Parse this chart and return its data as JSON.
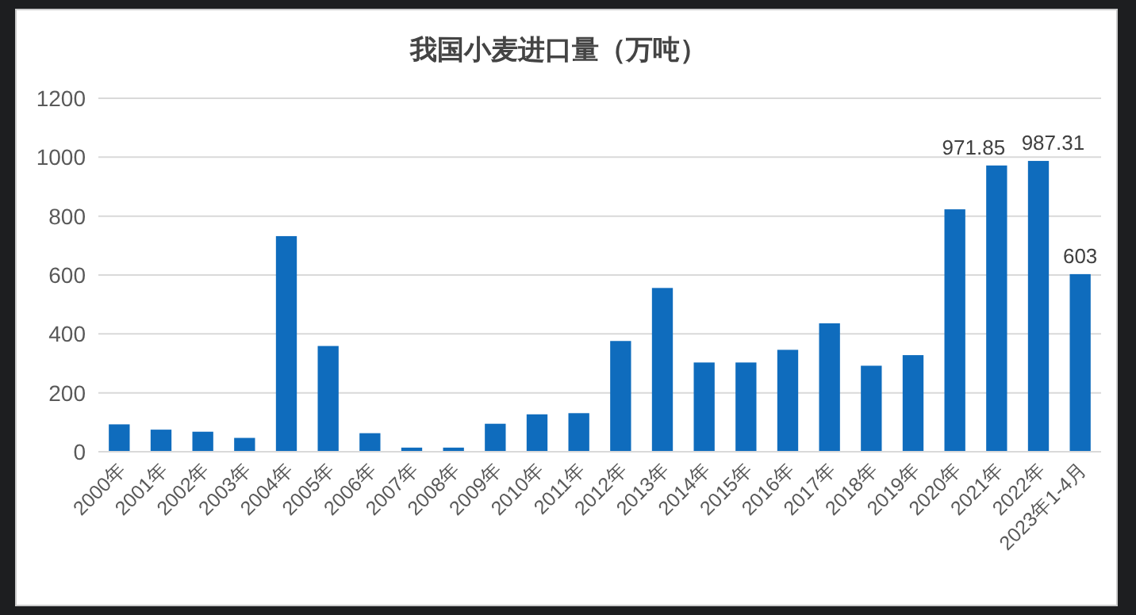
{
  "chart_data": {
    "type": "bar",
    "title": "我国小麦进口量（万吨）",
    "categories": [
      "2000年",
      "2001年",
      "2002年",
      "2003年",
      "2004年",
      "2005年",
      "2006年",
      "2007年",
      "2008年",
      "2009年",
      "2010年",
      "2011年",
      "2012年",
      "2013年",
      "2014年",
      "2015年",
      "2016年",
      "2017年",
      "2018年",
      "2019年",
      "2020年",
      "2021年",
      "2022年",
      "2023年1-4月"
    ],
    "values": [
      93,
      75,
      68,
      47,
      732,
      359,
      63,
      14,
      14,
      95,
      127,
      131,
      376,
      556,
      303,
      303,
      346,
      436,
      292,
      328,
      823,
      971.85,
      987.31,
      603
    ],
    "value_labels": [
      null,
      null,
      null,
      null,
      null,
      null,
      null,
      null,
      null,
      null,
      null,
      null,
      null,
      null,
      null,
      null,
      null,
      null,
      null,
      null,
      null,
      "971.85",
      "987.31",
      "603"
    ],
    "color": "#0f6cbd",
    "ylim": [
      0,
      1200
    ],
    "yticks": [
      0,
      200,
      400,
      600,
      800,
      1000,
      1200
    ],
    "grid": "y"
  }
}
